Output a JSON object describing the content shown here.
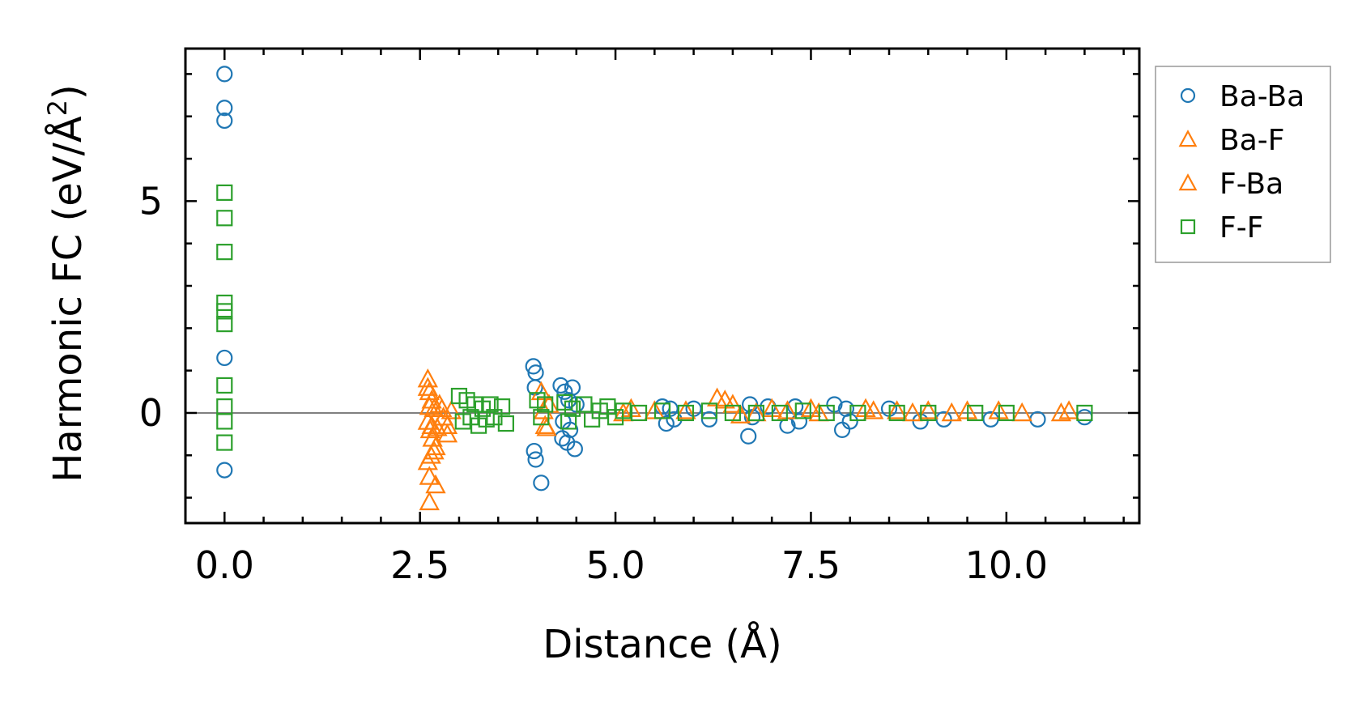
{
  "chart_data": {
    "type": "scatter",
    "title": "",
    "xlabel": "Distance (Å)",
    "ylabel": "Harmonic FC (eV/Å",
    "ylabel_superscript": "2",
    "ylabel_suffix": ")",
    "xlim": [
      -0.5,
      11.7
    ],
    "ylim": [
      -2.6,
      8.6
    ],
    "x_major_ticks": [
      0.0,
      2.5,
      5.0,
      7.5,
      10.0
    ],
    "x_tick_labels": [
      "0.0",
      "2.5",
      "5.0",
      "7.5",
      "10.0"
    ],
    "y_major_ticks": [
      0,
      5
    ],
    "y_tick_labels": [
      "0",
      "5"
    ],
    "x_minor_step": 0.5,
    "y_minor_step": 1,
    "zero_line": true,
    "grid": false,
    "legend_position": "outside-top-right",
    "series": [
      {
        "name": "Ba-Ba",
        "marker": "circle",
        "color": "#1f77b4",
        "points": [
          [
            0,
            8.0
          ],
          [
            0,
            7.2
          ],
          [
            0,
            6.9
          ],
          [
            0,
            1.3
          ],
          [
            0,
            -1.35
          ],
          [
            3.95,
            1.1
          ],
          [
            3.98,
            0.95
          ],
          [
            3.97,
            0.6
          ],
          [
            3.96,
            -0.9
          ],
          [
            3.98,
            -1.1
          ],
          [
            4.05,
            -1.65
          ],
          [
            4.3,
            0.65
          ],
          [
            4.35,
            0.5
          ],
          [
            4.32,
            -0.6
          ],
          [
            4.38,
            -0.7
          ],
          [
            4.45,
            0.6
          ],
          [
            4.48,
            -0.85
          ],
          [
            4.4,
            0.3
          ],
          [
            4.42,
            -0.4
          ],
          [
            4.5,
            0.2
          ],
          [
            4.33,
            -0.2
          ],
          [
            5.6,
            0.15
          ],
          [
            5.65,
            -0.25
          ],
          [
            5.7,
            0.1
          ],
          [
            5.75,
            -0.15
          ],
          [
            6.0,
            0.1
          ],
          [
            6.2,
            -0.15
          ],
          [
            6.7,
            -0.55
          ],
          [
            6.72,
            0.2
          ],
          [
            6.75,
            -0.1
          ],
          [
            6.95,
            0.15
          ],
          [
            7.2,
            -0.3
          ],
          [
            7.3,
            0.15
          ],
          [
            7.35,
            -0.2
          ],
          [
            7.8,
            0.2
          ],
          [
            7.9,
            -0.4
          ],
          [
            7.95,
            0.1
          ],
          [
            8.0,
            -0.2
          ],
          [
            8.5,
            0.1
          ],
          [
            8.9,
            -0.2
          ],
          [
            9.2,
            -0.15
          ],
          [
            9.8,
            -0.15
          ],
          [
            10.4,
            -0.15
          ],
          [
            11.0,
            -0.1
          ]
        ]
      },
      {
        "name": "Ba-F",
        "marker": "triangle",
        "color": "#ff7f0e",
        "points": [
          [
            2.6,
            0.8
          ],
          [
            2.62,
            0.5
          ],
          [
            2.65,
            0.3
          ],
          [
            2.68,
            0.1
          ],
          [
            2.6,
            -0.2
          ],
          [
            2.63,
            -0.4
          ],
          [
            2.66,
            -0.6
          ],
          [
            2.7,
            -0.8
          ],
          [
            2.64,
            -1.0
          ],
          [
            2.62,
            -1.5
          ],
          [
            2.7,
            -1.7
          ],
          [
            2.75,
            0.2
          ],
          [
            2.8,
            -0.1
          ],
          [
            2.85,
            -0.5
          ],
          [
            2.9,
            0.05
          ],
          [
            4.05,
            0.5
          ],
          [
            4.1,
            -0.3
          ],
          [
            4.15,
            0.2
          ],
          [
            5.2,
            0.1
          ],
          [
            5.5,
            0.05
          ],
          [
            6.3,
            0.35
          ],
          [
            6.5,
            0.2
          ],
          [
            6.6,
            -0.05
          ],
          [
            7.0,
            0.1
          ],
          [
            7.5,
            0.1
          ],
          [
            8.2,
            0.1
          ],
          [
            8.6,
            0.05
          ],
          [
            9.0,
            0.05
          ],
          [
            9.5,
            0.05
          ],
          [
            10.2,
            0.0
          ],
          [
            10.8,
            0.05
          ]
        ]
      },
      {
        "name": "F-Ba",
        "marker": "triangle",
        "color": "#ff7f0e",
        "points": [
          [
            2.6,
            0.6
          ],
          [
            2.62,
            0.15
          ],
          [
            2.65,
            -0.3
          ],
          [
            2.68,
            -0.9
          ],
          [
            2.6,
            -1.15
          ],
          [
            2.62,
            -2.1
          ],
          [
            2.72,
            -0.35
          ],
          [
            2.78,
            0.1
          ],
          [
            2.85,
            -0.3
          ],
          [
            4.08,
            0.05
          ],
          [
            4.12,
            -0.35
          ],
          [
            5.1,
            0.0
          ],
          [
            5.9,
            0.05
          ],
          [
            6.4,
            0.3
          ],
          [
            6.8,
            0.0
          ],
          [
            7.2,
            0.05
          ],
          [
            7.6,
            0.0
          ],
          [
            8.3,
            0.05
          ],
          [
            8.8,
            0.0
          ],
          [
            9.3,
            0.0
          ],
          [
            9.9,
            0.05
          ],
          [
            10.7,
            0.0
          ]
        ]
      },
      {
        "name": "F-F",
        "marker": "square",
        "color": "#2ca02c",
        "points": [
          [
            0,
            5.2
          ],
          [
            0,
            4.6
          ],
          [
            0,
            3.8
          ],
          [
            0,
            2.6
          ],
          [
            0,
            2.4
          ],
          [
            0,
            2.1
          ],
          [
            0,
            0.65
          ],
          [
            0,
            0.15
          ],
          [
            0,
            -0.2
          ],
          [
            0,
            -0.7
          ],
          [
            3.0,
            0.4
          ],
          [
            3.05,
            -0.2
          ],
          [
            3.1,
            0.3
          ],
          [
            3.15,
            -0.1
          ],
          [
            3.2,
            0.2
          ],
          [
            3.25,
            -0.3
          ],
          [
            3.3,
            0.1
          ],
          [
            3.35,
            -0.15
          ],
          [
            3.4,
            0.2
          ],
          [
            3.45,
            -0.1
          ],
          [
            3.55,
            0.15
          ],
          [
            3.6,
            -0.25
          ],
          [
            4.0,
            0.3
          ],
          [
            4.05,
            -0.1
          ],
          [
            4.1,
            0.2
          ],
          [
            4.35,
            0.25
          ],
          [
            4.4,
            -0.2
          ],
          [
            4.45,
            0.1
          ],
          [
            4.6,
            0.2
          ],
          [
            4.7,
            -0.15
          ],
          [
            4.8,
            0.05
          ],
          [
            4.9,
            0.15
          ],
          [
            5.0,
            -0.1
          ],
          [
            5.1,
            0.05
          ],
          [
            5.3,
            0.0
          ],
          [
            5.6,
            0.05
          ],
          [
            5.9,
            0.0
          ],
          [
            6.2,
            0.05
          ],
          [
            6.5,
            0.0
          ],
          [
            6.8,
            0.0
          ],
          [
            7.1,
            0.0
          ],
          [
            7.4,
            0.05
          ],
          [
            7.7,
            0.0
          ],
          [
            8.1,
            0.0
          ],
          [
            8.6,
            0.0
          ],
          [
            9.0,
            0.0
          ],
          [
            9.6,
            0.0
          ],
          [
            10.0,
            0.0
          ],
          [
            11.0,
            0.0
          ]
        ]
      }
    ]
  }
}
